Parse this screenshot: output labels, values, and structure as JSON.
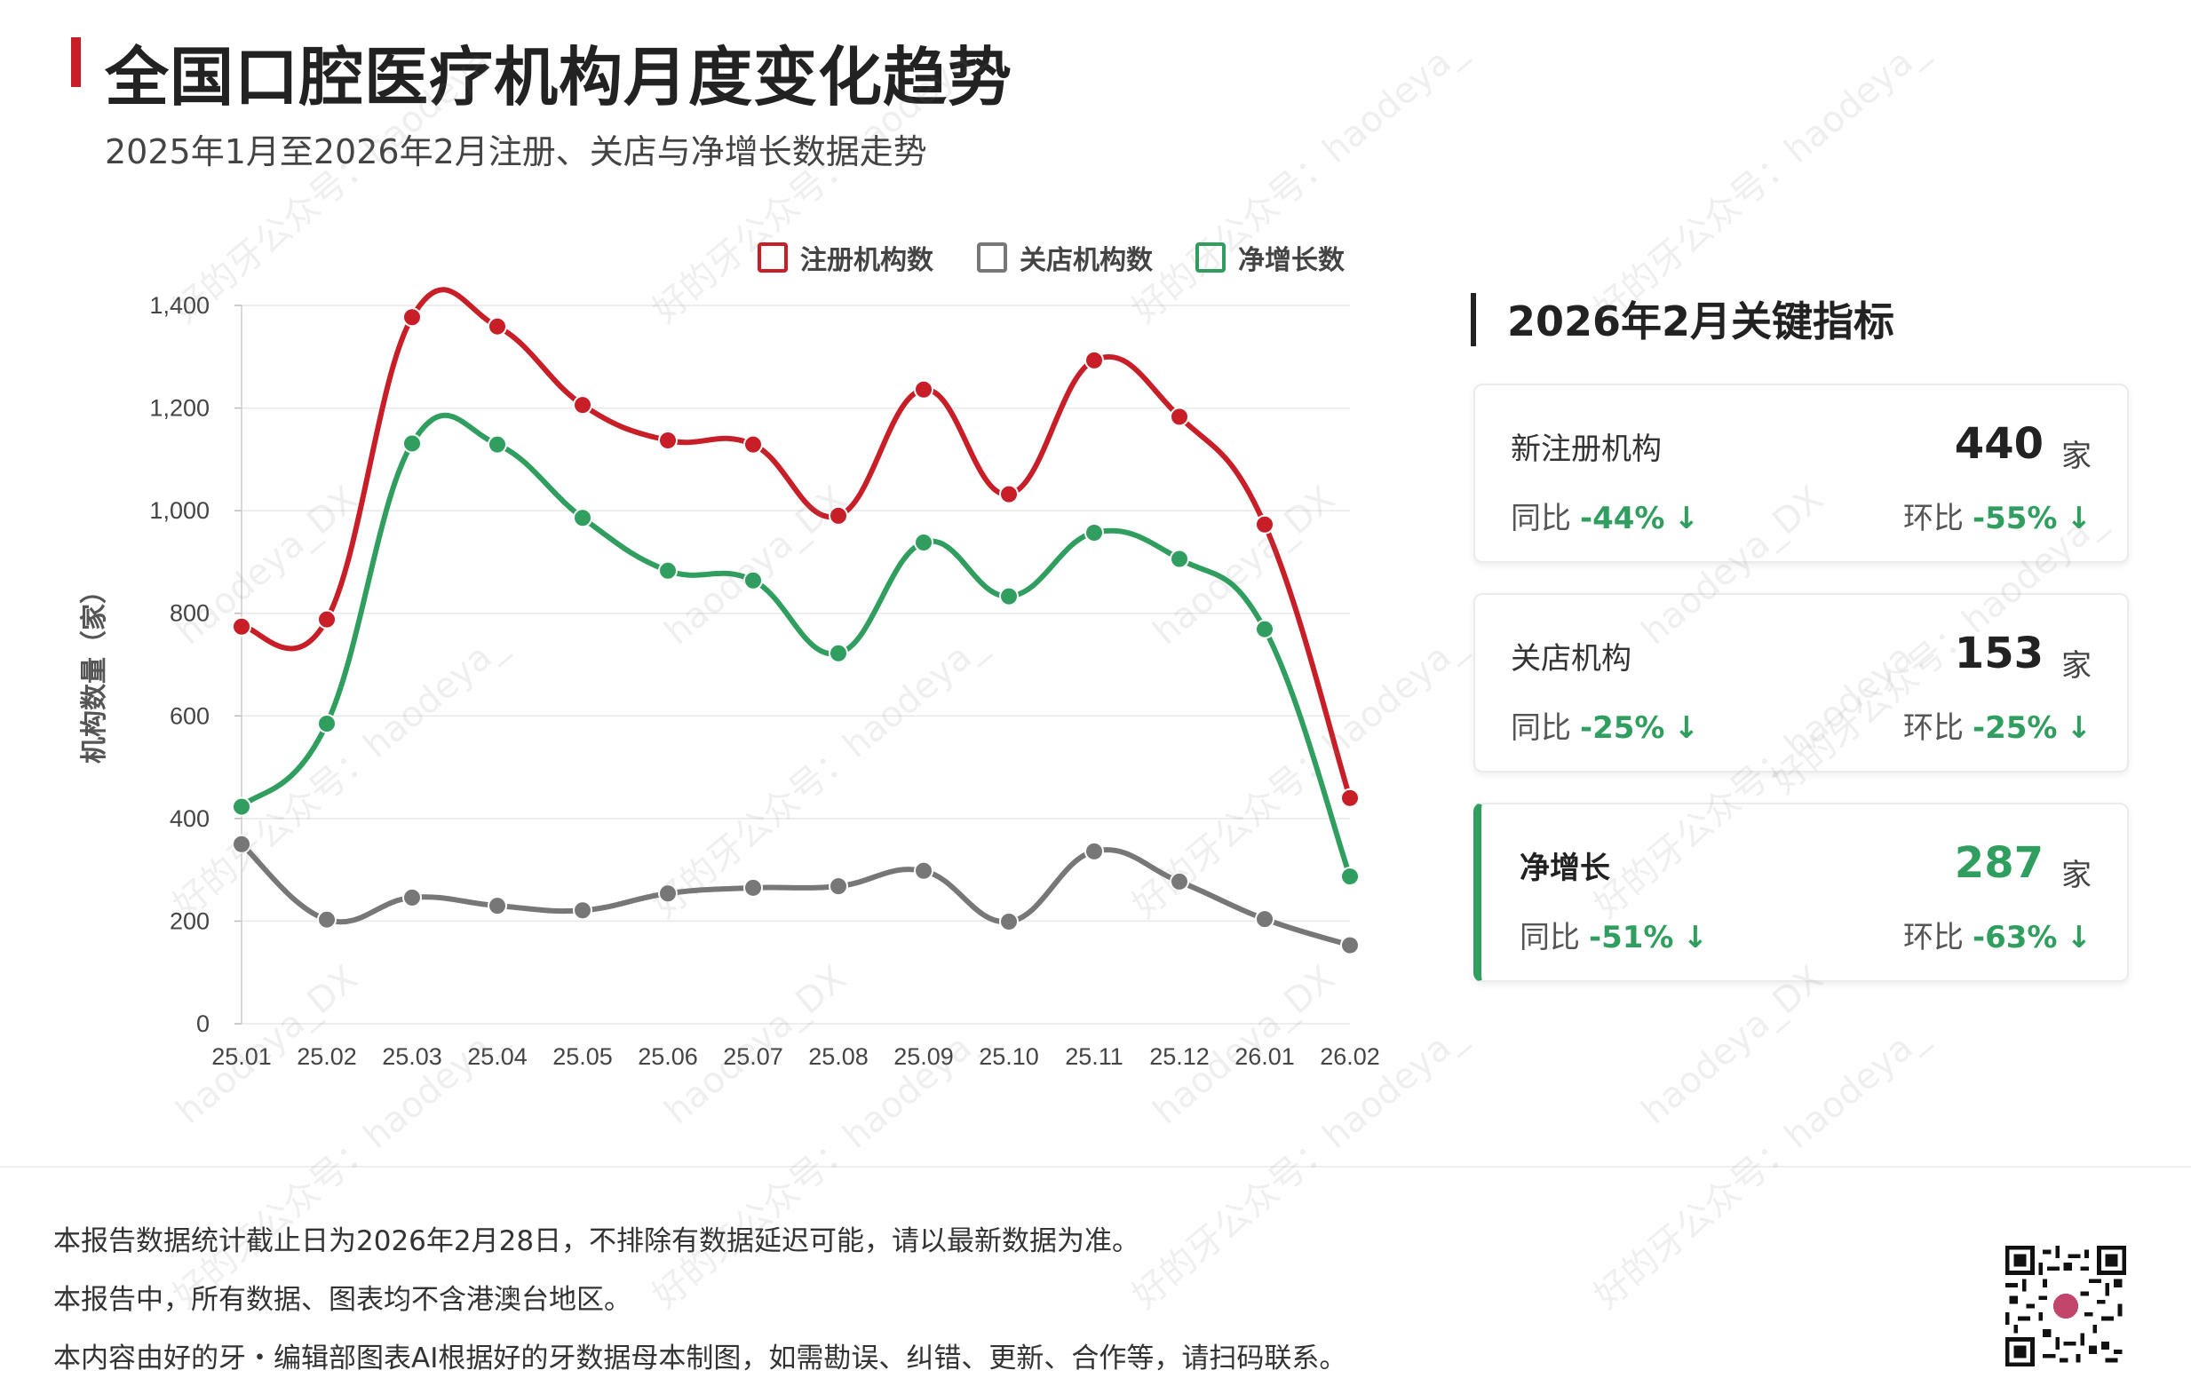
{
  "header": {
    "title": "全国口腔医疗机构月度变化趋势",
    "subtitle": "2025年1月至2026年2月注册、关店与净增长数据走势"
  },
  "chart_data": {
    "type": "line",
    "title": "",
    "xlabel": "",
    "ylabel": "机构数量（家）",
    "categories": [
      "25.01",
      "25.02",
      "25.03",
      "25.04",
      "25.05",
      "25.06",
      "25.07",
      "25.08",
      "25.09",
      "25.10",
      "25.11",
      "25.12",
      "26.01",
      "26.02"
    ],
    "ylim": [
      0,
      1400
    ],
    "yticks": [
      "0",
      "200",
      "400",
      "600",
      "800",
      "1,000",
      "1,200",
      "1,400"
    ],
    "grid": true,
    "legend_position": "top-right",
    "series": [
      {
        "name": "注册机构数",
        "color": "#c81e28",
        "values": [
          774,
          788,
          1377,
          1359,
          1206,
          1137,
          1129,
          990,
          1236,
          1032,
          1293,
          1183,
          973,
          440
        ]
      },
      {
        "name": "关店机构数",
        "color": "#777777",
        "values": [
          350,
          203,
          246,
          230,
          221,
          254,
          265,
          268,
          298,
          199,
          336,
          277,
          204,
          153
        ]
      },
      {
        "name": "净增长数",
        "color": "#2f9e5e",
        "values": [
          423,
          585,
          1131,
          1129,
          986,
          883,
          864,
          722,
          938,
          833,
          957,
          906,
          769,
          287
        ]
      }
    ]
  },
  "kpi": {
    "title": "2026年2月关键指标",
    "unit": "家",
    "yoy_label": "同比",
    "mom_label": "环比",
    "down_arrow": "↓",
    "cards": [
      {
        "label": "新注册机构",
        "value": "440",
        "yoy": "-44%",
        "mom": "-55%"
      },
      {
        "label": "关店机构",
        "value": "153",
        "yoy": "-25%",
        "mom": "-25%"
      },
      {
        "label": "净增长",
        "value": "287",
        "yoy": "-51%",
        "mom": "-63%"
      }
    ]
  },
  "colors": {
    "accent_red": "#c81e28",
    "green": "#2f9e5e",
    "gray": "#777777"
  },
  "footer": {
    "notes": [
      "本报告数据统计截止日为2026年2月28日，不排除有数据延迟可能，请以最新数据为准。",
      "本报告中，所有数据、图表均不含港澳台地区。",
      "本内容由好的牙・编辑部图表AI根据好的牙数据母本制图，如需勘误、纠错、更新、合作等，请扫码联系。"
    ]
  },
  "watermark": {
    "text_a": "好的牙公众号：haodeya_",
    "text_b": "haodeya_DX"
  },
  "icons": {
    "qr": "qr-code-icon",
    "arrow": "arrow-down-icon"
  }
}
